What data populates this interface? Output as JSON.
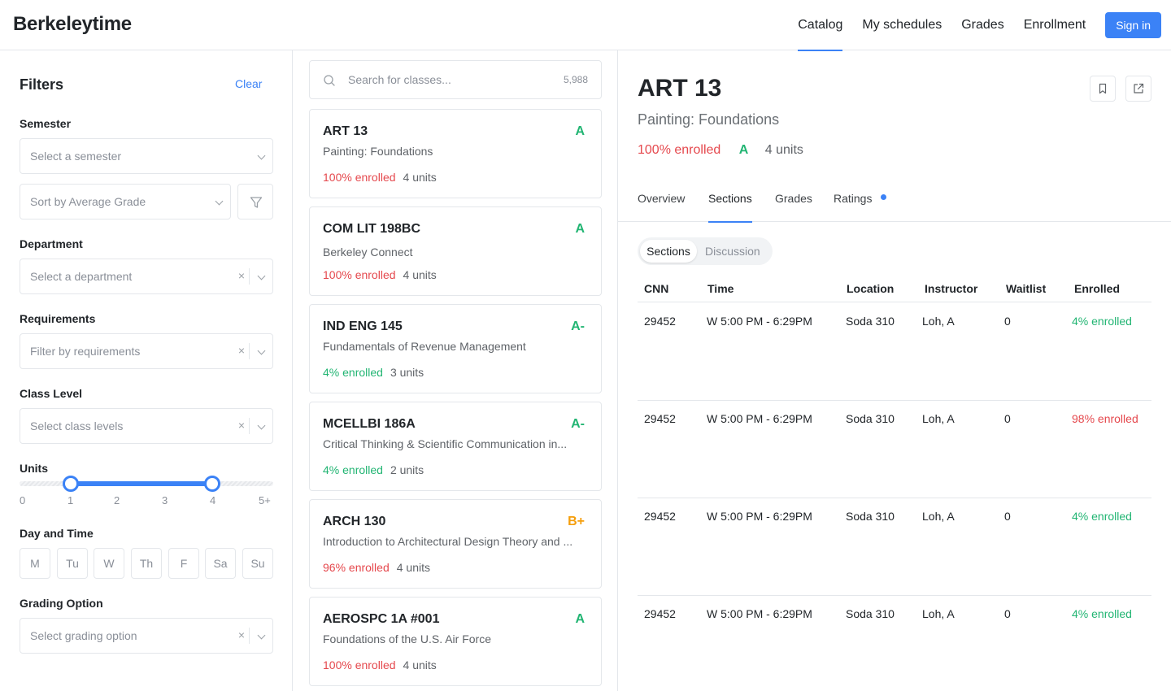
{
  "header": {
    "logo": "Berkeleytime",
    "nav": [
      "Catalog",
      "My schedules",
      "Grades",
      "Enrollment"
    ],
    "active_nav": "Catalog",
    "signin": "Sign in"
  },
  "filters": {
    "title": "Filters",
    "clear": "Clear",
    "semester_label": "Semester",
    "semester_ph": "Select a semester",
    "sort_ph": "Sort by Average Grade",
    "department_label": "Department",
    "department_ph": "Select a department",
    "requirements_label": "Requirements",
    "requirements_ph": "Filter by requirements",
    "class_level_label": "Class Level",
    "class_level_ph": "Select class levels",
    "units_label": "Units",
    "units_ticks": [
      "0",
      "1",
      "2",
      "3",
      "4",
      "5+"
    ],
    "units_range": [
      1,
      4
    ],
    "day_time_label": "Day and Time",
    "days": [
      "M",
      "Tu",
      "W",
      "Th",
      "F",
      "Sa",
      "Su"
    ],
    "grading_label": "Grading Option",
    "grading_ph": "Select grading option",
    "clear_glyph": "×"
  },
  "search": {
    "placeholder": "Search for classes...",
    "count": "5,988"
  },
  "cards": [
    {
      "code": "ART 13",
      "title": "Painting: Foundations",
      "grade": "A",
      "grade_color": "#22b573",
      "enrolled": "100% enrolled",
      "enrolled_color": "#e5484d",
      "units": "4 units"
    },
    {
      "code": "COM LIT 198BC",
      "title": "Berkeley Connect",
      "grade": "A",
      "grade_color": "#22b573",
      "enrolled": "100% enrolled",
      "enrolled_color": "#e5484d",
      "units": "4 units"
    },
    {
      "code": "IND ENG 145",
      "title": "Fundamentals of Revenue Management",
      "grade": "A-",
      "grade_color": "#22b573",
      "enrolled": "4% enrolled",
      "enrolled_color": "#22b573",
      "units": "3 units"
    },
    {
      "code": "MCELLBI 186A",
      "title": "Critical Thinking & Scientific Communication in...",
      "grade": "A-",
      "grade_color": "#22b573",
      "enrolled": "4% enrolled",
      "enrolled_color": "#22b573",
      "units": "2 units"
    },
    {
      "code": "ARCH 130",
      "title": "Introduction to Architectural Design Theory and ...",
      "grade": "B+",
      "grade_color": "#f59e0b",
      "enrolled": "96% enrolled",
      "enrolled_color": "#e5484d",
      "units": "4 units"
    },
    {
      "code": "AEROSPC 1A #001",
      "title": "Foundations of the U.S. Air Force",
      "grade": "A",
      "grade_color": "#22b573",
      "enrolled": "100% enrolled",
      "enrolled_color": "#e5484d",
      "units": "4 units"
    }
  ],
  "detail": {
    "code": "ART 13",
    "title": "Painting: Foundations",
    "enrolled": "100% enrolled",
    "enrolled_color": "#e5484d",
    "grade": "A",
    "grade_color": "#22b573",
    "units": "4 units",
    "tabs": [
      "Overview",
      "Sections",
      "Grades",
      "Ratings"
    ],
    "active_tab": "Sections",
    "segment": [
      "Sections",
      "Discussion"
    ],
    "columns": [
      "CNN",
      "Time",
      "Location",
      "Instructor",
      "Waitlist",
      "Enrolled"
    ],
    "rows": [
      {
        "cnn": "29452",
        "time": "W 5:00 PM - 6:29PM",
        "location": "Soda 310",
        "instructor": "Loh, A",
        "waitlist": "0",
        "enrolled": "4% enrolled",
        "enrolled_color": "#22b573"
      },
      {
        "cnn": "29452",
        "time": "W 5:00 PM - 6:29PM",
        "location": "Soda 310",
        "instructor": "Loh, A",
        "waitlist": "0",
        "enrolled": "98% enrolled",
        "enrolled_color": "#e5484d"
      },
      {
        "cnn": "29452",
        "time": "W 5:00 PM - 6:29PM",
        "location": "Soda 310",
        "instructor": "Loh, A",
        "waitlist": "0",
        "enrolled": "4% enrolled",
        "enrolled_color": "#22b573"
      },
      {
        "cnn": "29452",
        "time": "W 5:00 PM - 6:29PM",
        "location": "Soda 310",
        "instructor": "Loh, A",
        "waitlist": "0",
        "enrolled": "4% enrolled",
        "enrolled_color": "#22b573"
      }
    ]
  },
  "icons": {
    "search": "search-icon",
    "filter": "filter-icon",
    "bookmark": "bookmark-icon",
    "open": "external-link-icon",
    "chevron": "chevron-down-icon",
    "clear": "close-icon"
  }
}
